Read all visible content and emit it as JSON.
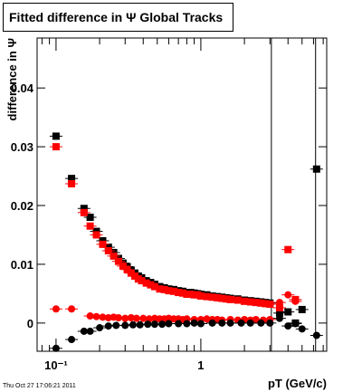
{
  "chart_data": {
    "type": "scatter",
    "title": "Fitted difference in  Ψ   Global Tracks",
    "x_label": "pT (GeV/c)",
    "y_label": "difference in Ψ",
    "footer": "Thu Oct 27 17:06:21 2011",
    "xlog": true,
    "xlim": [
      0.074,
      7.4
    ],
    "ylim": [
      -0.0048,
      0.0485
    ],
    "xticks": [
      {
        "value": 0.1,
        "label": "10⁻¹"
      },
      1
    ],
    "xminorticks": [
      0.08,
      0.09,
      0.2,
      0.3,
      0.4,
      0.5,
      0.6,
      0.7,
      0.8,
      0.9,
      2,
      3,
      4,
      5,
      6,
      7
    ],
    "yticks": [
      0,
      0.01,
      0.02,
      0.03,
      0.04
    ],
    "vlines": [
      3.07,
      6.2
    ],
    "series": [
      {
        "name": "black squares",
        "color": "#000000",
        "marker": "square",
        "x": [
          0.1,
          0.128,
          0.156,
          0.172,
          0.19,
          0.21,
          0.23,
          0.25,
          0.27,
          0.29,
          0.31,
          0.33,
          0.35,
          0.37,
          0.39,
          0.42,
          0.45,
          0.48,
          0.52,
          0.56,
          0.6,
          0.65,
          0.7,
          0.75,
          0.8,
          0.85,
          0.9,
          0.95,
          1.0,
          1.1,
          1.2,
          1.3,
          1.4,
          1.5,
          1.6,
          1.8,
          2.0,
          2.2,
          2.4,
          2.6,
          2.8,
          3.0,
          3.5,
          4.0,
          4.5,
          5.0,
          6.3
        ],
        "values": [
          0.0318,
          0.0246,
          0.0195,
          0.018,
          0.0156,
          0.014,
          0.0129,
          0.012,
          0.011,
          0.0102,
          0.0096,
          0.009,
          0.0085,
          0.008,
          0.0077,
          0.0072,
          0.0069,
          0.0066,
          0.0062,
          0.006,
          0.0058,
          0.0057,
          0.0055,
          0.0054,
          0.0052,
          0.0052,
          0.0051,
          0.005,
          0.0049,
          0.0048,
          0.0046,
          0.0045,
          0.0044,
          0.0043,
          0.0042,
          0.0041,
          0.0039,
          0.0038,
          0.0037,
          0.0036,
          0.0035,
          0.0034,
          0.0017,
          0.0019,
          0.0,
          0.0023,
          0.0262
        ]
      },
      {
        "name": "red squares",
        "color": "#ff0000",
        "marker": "square",
        "x": [
          0.1,
          0.128,
          0.156,
          0.172,
          0.19,
          0.21,
          0.23,
          0.25,
          0.27,
          0.29,
          0.31,
          0.33,
          0.35,
          0.37,
          0.39,
          0.42,
          0.45,
          0.48,
          0.52,
          0.56,
          0.6,
          0.65,
          0.7,
          0.75,
          0.8,
          0.85,
          0.9,
          0.95,
          1.0,
          1.1,
          1.2,
          1.3,
          1.4,
          1.5,
          1.6,
          1.8,
          2.0,
          2.2,
          2.4,
          2.6,
          2.8,
          3.0,
          3.5,
          4.0,
          4.5
        ],
        "values": [
          0.03,
          0.0237,
          0.0188,
          0.0165,
          0.015,
          0.0134,
          0.0123,
          0.0114,
          0.0105,
          0.0097,
          0.0091,
          0.0085,
          0.008,
          0.0075,
          0.0072,
          0.0068,
          0.0065,
          0.0062,
          0.0058,
          0.0057,
          0.0055,
          0.0054,
          0.0052,
          0.0051,
          0.0049,
          0.0049,
          0.0048,
          0.0048,
          0.0046,
          0.0045,
          0.0044,
          0.0043,
          0.0042,
          0.0041,
          0.004,
          0.0039,
          0.0037,
          0.0036,
          0.0035,
          0.0034,
          0.0033,
          0.0032,
          0.0026,
          0.0125,
          0.004
        ]
      },
      {
        "name": "red circles",
        "color": "#ff0000",
        "marker": "circle",
        "x": [
          0.1,
          0.128,
          0.172,
          0.19,
          0.21,
          0.23,
          0.25,
          0.27,
          0.3,
          0.33,
          0.36,
          0.4,
          0.44,
          0.48,
          0.52,
          0.56,
          0.6,
          0.65,
          0.7,
          0.75,
          0.8,
          0.9,
          1.0,
          1.1,
          1.2,
          1.3,
          1.4,
          1.6,
          1.8,
          2.0,
          2.2,
          2.4,
          2.7,
          3.0,
          3.5,
          4.0,
          4.5
        ],
        "values": [
          0.0024,
          0.0024,
          0.0012,
          0.0011,
          0.001,
          0.0009,
          0.001,
          0.0009,
          0.0008,
          0.0009,
          0.0008,
          0.0008,
          0.0007,
          0.0008,
          0.0007,
          0.0007,
          0.0008,
          0.0007,
          0.0007,
          0.0006,
          0.0007,
          0.0006,
          0.0006,
          0.0007,
          0.0006,
          0.0006,
          0.0005,
          0.0006,
          0.0005,
          0.0006,
          0.0005,
          0.0006,
          0.0005,
          0.0006,
          0.0035,
          0.0048,
          0.0037
        ]
      },
      {
        "name": "black circles",
        "color": "#000000",
        "marker": "circle",
        "x": [
          0.1,
          0.128,
          0.156,
          0.172,
          0.2,
          0.23,
          0.26,
          0.3,
          0.34,
          0.38,
          0.43,
          0.48,
          0.54,
          0.6,
          0.7,
          0.8,
          0.9,
          1.0,
          1.2,
          1.4,
          1.6,
          1.9,
          2.2,
          2.6,
          3.0,
          3.5,
          4.0,
          4.5,
          5.0,
          6.3
        ],
        "values": [
          -0.0043,
          -0.0028,
          -0.0014,
          -0.0014,
          -0.0008,
          -0.0005,
          -0.0004,
          -0.0004,
          -0.0003,
          -0.0003,
          -0.0002,
          -0.0002,
          -0.0002,
          -0.0001,
          -0.0001,
          -0.0001,
          0.0,
          -0.0001,
          0.0,
          0.0,
          0.0,
          0.0,
          0.0,
          0.0,
          0.0,
          0.0008,
          -0.0005,
          -0.0001,
          -0.001,
          -0.0021
        ]
      }
    ]
  }
}
